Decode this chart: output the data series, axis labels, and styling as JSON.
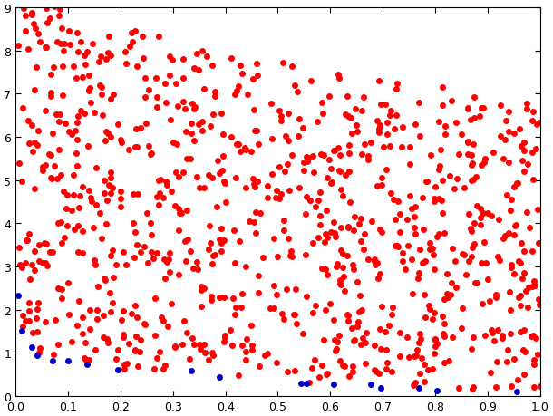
{
  "n_points": 1000,
  "seed": 42,
  "n_vars": 2,
  "xlim": [
    0.0,
    1.0
  ],
  "ylim": [
    0.0,
    9.0
  ],
  "xticks": [
    0.0,
    0.1,
    0.2,
    0.3,
    0.4,
    0.5,
    0.6,
    0.7,
    0.8,
    0.9,
    1.0
  ],
  "yticks": [
    0,
    1,
    2,
    3,
    4,
    5,
    6,
    7,
    8,
    9
  ],
  "pareto_color": "#0000CC",
  "dominated_color": "#FF0000",
  "marker_size": 5,
  "background_color": "#FFFFFF",
  "figure_width": 6.1,
  "figure_height": 4.6,
  "dpi": 100
}
